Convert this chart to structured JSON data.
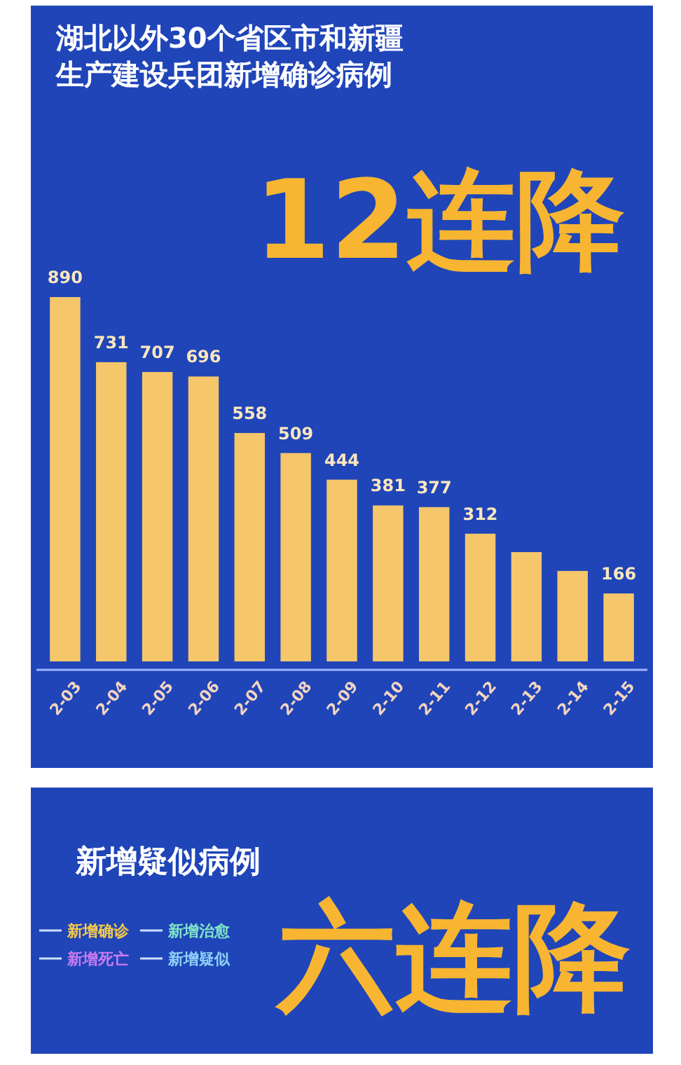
{
  "chart_data": [
    {
      "type": "bar",
      "title": "湖北以外30个省区市和新疆生产建设兵团新增确诊病例",
      "subtitle": "12连降",
      "categories": [
        "2-03",
        "2-04",
        "2-05",
        "2-06",
        "2-07",
        "2-08",
        "2-09",
        "2-10",
        "2-11",
        "2-12",
        "2-13",
        "2-14",
        "2-15"
      ],
      "values": [
        890,
        731,
        707,
        696,
        558,
        509,
        444,
        381,
        377,
        312,
        267,
        221,
        166
      ],
      "value_labels": [
        "890",
        "731",
        "707",
        "696",
        "558",
        "509",
        "444",
        "381",
        "377",
        "312",
        null,
        null,
        "166"
      ],
      "color": "#f6c66a"
    },
    {
      "type": "other",
      "title": "新增疑似病例",
      "subtitle": "六连降",
      "annotations": [
        "新增确诊",
        "新增治愈",
        "新增死亡",
        "新增疑似"
      ],
      "colors": [
        "#f3c94e",
        "#7fe3c8",
        "#c77cf0",
        "#8fd0f5"
      ]
    }
  ]
}
